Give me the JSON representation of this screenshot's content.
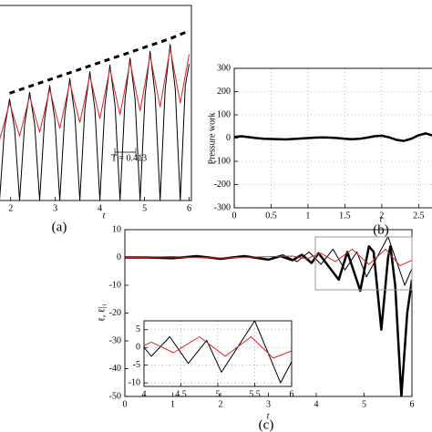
{
  "chart_data": [
    {
      "type": "line",
      "caption": "(a)",
      "xlabel": "t",
      "annotation": "T = 0.413",
      "xlim": [
        1.72,
        6.05
      ],
      "xticks": [
        2,
        3,
        4,
        5,
        6
      ],
      "ylim": [
        0,
        1
      ],
      "grid": false,
      "series": [
        {
          "color": "#000000",
          "line_width": 1,
          "x": [
            1.75,
            1.8625,
            1.975,
            2.0875,
            2.2,
            2.3125,
            2.425,
            2.5375,
            2.65,
            2.7625,
            2.875,
            2.9875,
            3.1,
            3.2125,
            3.325,
            3.4375,
            3.55,
            3.6625,
            3.775,
            3.8875,
            4.0,
            4.1125,
            4.225,
            4.3375,
            4.45,
            4.5625,
            4.675,
            4.7875,
            4.9,
            5.0125,
            5.125,
            5.2375,
            5.35,
            5.4625,
            5.575,
            5.6875,
            5.8,
            5.9125,
            6.0
          ],
          "values": [
            0,
            0.37,
            0.52,
            0.37,
            0,
            0.39,
            0.555,
            0.39,
            0,
            0.42,
            0.59,
            0.42,
            0,
            0.44,
            0.625,
            0.44,
            0,
            0.47,
            0.66,
            0.47,
            0,
            0.49,
            0.695,
            0.49,
            0,
            0.52,
            0.73,
            0.52,
            0,
            0.54,
            0.765,
            0.54,
            0,
            0.57,
            0.8,
            0.57,
            0,
            0.59,
            0.7
          ]
        },
        {
          "color": "#d62728",
          "line_width": 1,
          "x": [
            1.75,
            1.975,
            2.2,
            2.425,
            2.65,
            2.875,
            3.1,
            3.325,
            3.55,
            3.775,
            4.0,
            4.225,
            4.45,
            4.675,
            4.9,
            5.125,
            5.35,
            5.575,
            5.8,
            6.0
          ],
          "values": [
            0.31,
            0.5,
            0.33,
            0.535,
            0.35,
            0.57,
            0.37,
            0.605,
            0.4,
            0.64,
            0.42,
            0.675,
            0.44,
            0.71,
            0.46,
            0.745,
            0.48,
            0.78,
            0.5,
            0.75
          ]
        },
        {
          "color": "#000000",
          "line_width": 3,
          "dash": "6,5",
          "x": [
            1.975,
            2.425,
            2.875,
            3.325,
            3.775,
            4.225,
            4.675,
            5.125,
            5.575,
            6.0
          ],
          "values": [
            0.55,
            0.585,
            0.62,
            0.655,
            0.69,
            0.725,
            0.76,
            0.795,
            0.83,
            0.87
          ]
        }
      ]
    },
    {
      "type": "line",
      "caption": "(b)",
      "xlabel": "t",
      "ylabel": "Pressure work",
      "xlim": [
        0,
        2.78
      ],
      "xticks": [
        0,
        0.5,
        1,
        1.5,
        2,
        2.5
      ],
      "ylim": [
        -300,
        300
      ],
      "yticks": [
        -300,
        -200,
        -100,
        0,
        100,
        200,
        300
      ],
      "grid": true,
      "series": [
        {
          "color": "#000000",
          "line_width": 2.5,
          "x": [
            0,
            0.1,
            0.2,
            0.3,
            0.4,
            0.5,
            0.6,
            0.7,
            0.8,
            0.9,
            1.0,
            1.1,
            1.2,
            1.3,
            1.4,
            1.5,
            1.6,
            1.7,
            1.8,
            1.9,
            2.0,
            2.1,
            2.2,
            2.3,
            2.4,
            2.5,
            2.6,
            2.7,
            2.78
          ],
          "values": [
            5,
            8,
            4,
            0,
            -3,
            -4,
            -5,
            -6,
            -4,
            -2,
            0,
            2,
            3,
            2,
            0,
            -3,
            -5,
            -3,
            2,
            8,
            10,
            3,
            -8,
            -12,
            -3,
            12,
            20,
            10,
            -2
          ]
        }
      ]
    },
    {
      "type": "line",
      "caption": "(c)",
      "xlabel": "t",
      "ylabel": "ℓ, ℓ|₁",
      "xlim": [
        0,
        6
      ],
      "xticks": [
        0,
        1,
        2,
        3,
        4,
        5,
        6
      ],
      "ylim": [
        -50,
        10
      ],
      "yticks": [
        -50,
        -40,
        -30,
        -20,
        -10,
        0,
        10
      ],
      "grid": false,
      "series": [
        {
          "color": "#000000",
          "line_width": 2.5,
          "x": [
            0,
            0.5,
            1,
            1.5,
            2,
            2.5,
            3,
            3.25,
            3.5,
            3.7,
            3.9,
            4.05,
            4.25,
            4.47,
            4.65,
            4.92,
            5.1,
            5.2,
            5.36,
            5.5,
            5.55,
            5.65,
            5.78,
            5.9,
            6.0
          ],
          "values": [
            0,
            0,
            -0.3,
            0.5,
            -0.5,
            0.5,
            -0.8,
            0.5,
            -1,
            1,
            -2,
            1.5,
            -3,
            -8,
            2,
            -12,
            4,
            2,
            -26,
            0,
            4,
            -10,
            -50,
            -20,
            -8
          ]
        },
        {
          "color": "#000000",
          "line_width": 1,
          "x": [
            0,
            1,
            2,
            2.5,
            3,
            3.3,
            3.6,
            3.85,
            4.1,
            4.35,
            4.6,
            4.85,
            5.05,
            5.5,
            5.85,
            6.0
          ],
          "values": [
            0,
            0.3,
            -0.3,
            0.5,
            -0.7,
            1,
            -1.5,
            2,
            -2.5,
            3,
            -4.5,
            2,
            -7,
            7.5,
            -10,
            -4
          ]
        },
        {
          "color": "#d62728",
          "line_width": 1,
          "x": [
            0,
            1,
            2,
            3,
            3.5,
            3.8,
            4.1,
            4.4,
            4.75,
            5.1,
            5.45,
            5.75,
            6.0
          ],
          "values": [
            0,
            0.2,
            -0.2,
            0.3,
            0.5,
            -0.5,
            1.5,
            -1.5,
            3,
            -2.5,
            3,
            -3,
            -1
          ]
        }
      ]
    },
    {
      "type": "line",
      "xlim": [
        4,
        6
      ],
      "xticks": [
        4,
        4.5,
        5,
        5.5,
        6
      ],
      "ylim": [
        -11,
        7.5
      ],
      "yticks": [
        -10,
        -5,
        0,
        5
      ],
      "grid": true,
      "series": [
        {
          "color": "#000000",
          "line_width": 1,
          "x": [
            4.0,
            4.1,
            4.35,
            4.6,
            4.85,
            5.05,
            5.5,
            5.85,
            6.0
          ],
          "values": [
            0,
            -2.5,
            3,
            -4.5,
            2,
            -7,
            7.5,
            -10,
            -4
          ]
        },
        {
          "color": "#d62728",
          "line_width": 1,
          "x": [
            4.0,
            4.1,
            4.4,
            4.75,
            5.1,
            5.45,
            5.75,
            6.0
          ],
          "values": [
            0.5,
            1.5,
            -1.5,
            3,
            -2.5,
            3,
            -3,
            -1
          ]
        }
      ]
    }
  ]
}
